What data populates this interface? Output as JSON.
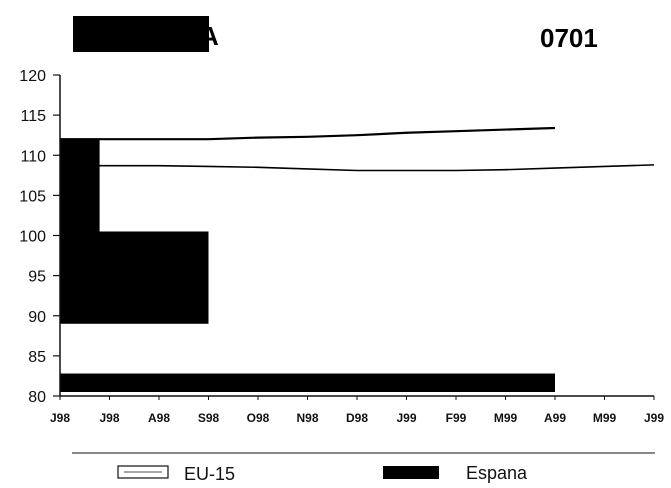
{
  "header": {
    "title_visible_fragment": "A",
    "code": "0701"
  },
  "legend": {
    "items": [
      {
        "name": "EU-15",
        "style": "outline"
      },
      {
        "name": "Espana",
        "style": "solid"
      }
    ]
  },
  "colors": {
    "ink": "#000000",
    "background": "#ffffff",
    "axis": "#111111"
  },
  "chart_data": {
    "type": "line",
    "title": "",
    "xlabel": "",
    "ylabel": "",
    "ylim": [
      80,
      120
    ],
    "y_ticks": [
      80,
      85,
      90,
      95,
      100,
      105,
      110,
      115,
      120
    ],
    "categories": [
      "J98",
      "J98",
      "A98",
      "S98",
      "O98",
      "N98",
      "D98",
      "J99",
      "F99",
      "M99",
      "A99",
      "M99",
      "J99"
    ],
    "grid": false,
    "legend_position": "bottom",
    "series": [
      {
        "name": "EU-15",
        "values": [
          108.7,
          108.7,
          108.7,
          108.6,
          108.5,
          108.3,
          108.1,
          108.1,
          108.1,
          108.2,
          108.4,
          108.6,
          108.8
        ]
      },
      {
        "name": "Espana",
        "values": [
          112,
          112,
          112,
          112,
          112.2,
          112.3,
          112.5,
          112.8,
          113,
          113.2,
          113.4,
          null,
          null
        ]
      }
    ],
    "shaded_blocks": [
      {
        "from_index": 0,
        "to_index": 0.8,
        "y_low": 100.5,
        "y_high": 112
      },
      {
        "from_index": 0,
        "to_index": 3,
        "y_low": 89,
        "y_high": 100.5
      },
      {
        "from_index": 0,
        "to_index": 10,
        "y_low": 80.5,
        "y_high": 82.8
      }
    ]
  }
}
